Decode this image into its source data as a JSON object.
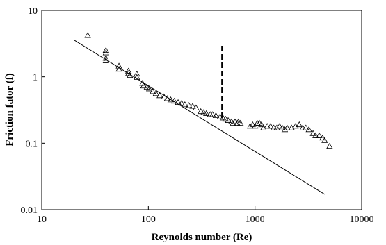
{
  "chart_data": {
    "type": "scatter",
    "title": "",
    "xlabel": "Reynolds number (Re)",
    "ylabel": "Friction fator (f)",
    "xscale": "log",
    "yscale": "log",
    "xlim": [
      10,
      10000
    ],
    "ylim": [
      0.01,
      10
    ],
    "grid": false,
    "legend": "none",
    "x_ticks": [
      {
        "value": 10,
        "label": "10"
      },
      {
        "value": 100,
        "label": "100"
      },
      {
        "value": 1000,
        "label": "1000"
      },
      {
        "value": 10000,
        "label": "10000"
      }
    ],
    "y_ticks": [
      {
        "value": 0.01,
        "label": "0.01"
      },
      {
        "value": 0.1,
        "label": "0.1"
      },
      {
        "value": 1,
        "label": "1"
      },
      {
        "value": 10,
        "label": "10"
      }
    ],
    "series": [
      {
        "marker": "open-triangle",
        "points": [
          [
            27,
            4.2
          ],
          [
            40,
            2.5
          ],
          [
            40,
            2.3
          ],
          [
            40,
            1.9
          ],
          [
            40,
            1.75
          ],
          [
            53,
            1.45
          ],
          [
            53,
            1.3
          ],
          [
            65,
            1.22
          ],
          [
            65,
            1.12
          ],
          [
            67,
            1.05
          ],
          [
            78,
            1.1
          ],
          [
            78,
            0.98
          ],
          [
            88,
            0.8
          ],
          [
            90,
            0.73
          ],
          [
            97,
            0.7
          ],
          [
            102,
            0.66
          ],
          [
            110,
            0.6
          ],
          [
            118,
            0.56
          ],
          [
            128,
            0.52
          ],
          [
            140,
            0.5
          ],
          [
            150,
            0.47
          ],
          [
            162,
            0.45
          ],
          [
            175,
            0.43
          ],
          [
            190,
            0.41
          ],
          [
            205,
            0.4
          ],
          [
            220,
            0.38
          ],
          [
            240,
            0.37
          ],
          [
            260,
            0.36
          ],
          [
            280,
            0.34
          ],
          [
            310,
            0.3
          ],
          [
            330,
            0.29
          ],
          [
            350,
            0.28
          ],
          [
            380,
            0.27
          ],
          [
            400,
            0.27
          ],
          [
            430,
            0.26
          ],
          [
            470,
            0.25
          ],
          [
            500,
            0.24
          ],
          [
            530,
            0.23
          ],
          [
            560,
            0.22
          ],
          [
            600,
            0.21
          ],
          [
            620,
            0.2
          ],
          [
            650,
            0.21
          ],
          [
            680,
            0.2
          ],
          [
            700,
            0.21
          ],
          [
            730,
            0.2
          ],
          [
            900,
            0.18
          ],
          [
            950,
            0.19
          ],
          [
            1000,
            0.18
          ],
          [
            1050,
            0.2
          ],
          [
            1100,
            0.2
          ],
          [
            1150,
            0.19
          ],
          [
            1200,
            0.17
          ],
          [
            1300,
            0.18
          ],
          [
            1400,
            0.18
          ],
          [
            1500,
            0.17
          ],
          [
            1600,
            0.17
          ],
          [
            1700,
            0.18
          ],
          [
            1800,
            0.17
          ],
          [
            1900,
            0.16
          ],
          [
            2000,
            0.17
          ],
          [
            2200,
            0.17
          ],
          [
            2400,
            0.18
          ],
          [
            2600,
            0.19
          ],
          [
            2800,
            0.17
          ],
          [
            3000,
            0.17
          ],
          [
            3200,
            0.16
          ],
          [
            3500,
            0.14
          ],
          [
            3700,
            0.13
          ],
          [
            4000,
            0.13
          ],
          [
            4300,
            0.12
          ],
          [
            4500,
            0.11
          ],
          [
            5000,
            0.09
          ]
        ]
      }
    ],
    "trend_line": {
      "points": [
        [
          20,
          3.6
        ],
        [
          4500,
          0.017
        ]
      ]
    },
    "vertical_dashed_line": {
      "x": 490,
      "y_from": 0.24,
      "y_to": 3.0
    }
  }
}
